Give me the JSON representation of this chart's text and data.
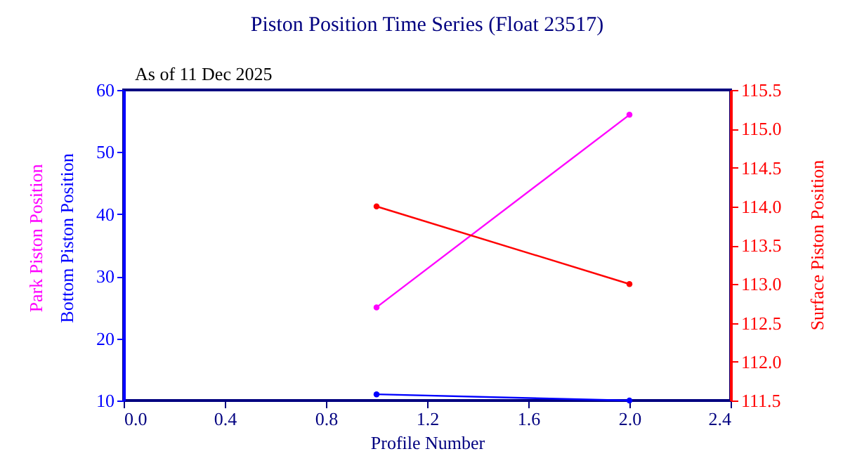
{
  "chart_data": {
    "type": "line",
    "title": "Piston Position Time Series (Float 23517)",
    "annotations": [
      "As of 11 Dec 2025"
    ],
    "xlabel": "Profile Number",
    "x": [
      1,
      2
    ],
    "series": [
      {
        "name": "Park Piston Position",
        "color": "#ff00ff",
        "values": [
          25,
          56
        ]
      },
      {
        "name": "Bottom Piston Position",
        "color": "#0000ff",
        "values": [
          11,
          10
        ]
      },
      {
        "name": "Surface Piston Position",
        "color": "#ff0000",
        "values": [
          114.0,
          113.0
        ],
        "axis": "y2"
      }
    ],
    "xlim": [
      0,
      2.4
    ],
    "xticks": [
      {
        "value": 0,
        "label": "0.0"
      },
      0.4,
      0.8,
      1.2,
      1.6,
      {
        "value": 2,
        "label": "2.0"
      },
      2.4
    ],
    "ylim": [
      10,
      60
    ],
    "yticks": [
      10,
      20,
      30,
      40,
      50,
      60
    ],
    "y2lim": [
      111.5,
      115.5
    ],
    "y2ticks": [
      111.5,
      {
        "value": 112,
        "label": "112.0"
      },
      112.5,
      {
        "value": 113,
        "label": "113.0"
      },
      113.5,
      {
        "value": 114,
        "label": "114.0"
      },
      114.5,
      {
        "value": 115,
        "label": "115.0"
      },
      115.5
    ],
    "grid": false,
    "marker": "circle",
    "line_style": "solid"
  }
}
